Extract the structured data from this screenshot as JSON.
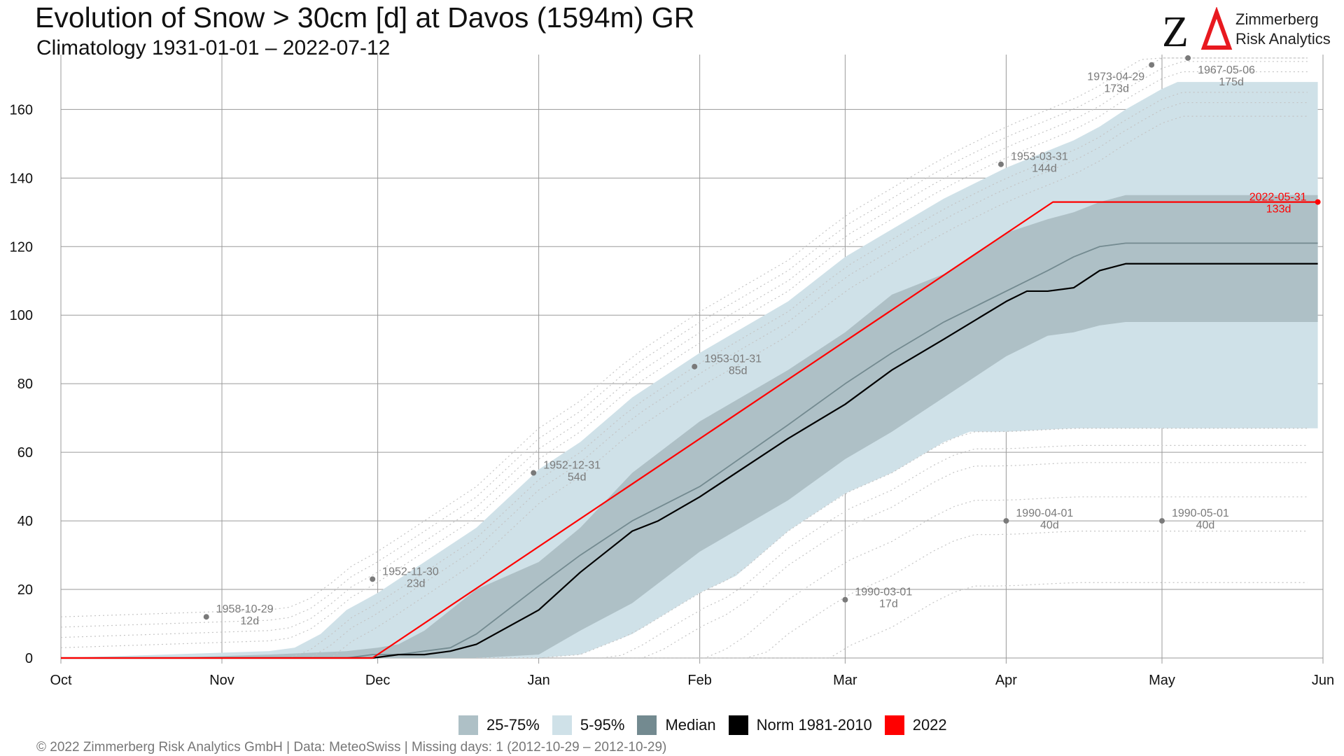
{
  "title": "Evolution of Snow > 30cm [d] at Davos (1594m) GR",
  "subtitle": "Climatology 1931-01-01 – 2022-07-12",
  "logo": {
    "mark": "ZΔ",
    "line1": "Zimmerberg",
    "line2": "Risk Analytics",
    "mark_color": "#e8191f"
  },
  "footer": "©  2022 Zimmerberg Risk Analytics GmbH | Data: MeteoSwiss | Missing days: 1 (2012-10-29 – 2012-10-29)",
  "legend": [
    {
      "label": "25-75%",
      "color": "#aec0c6"
    },
    {
      "label": "5-95%",
      "color": "#cfe1e8"
    },
    {
      "label": "Median",
      "color": "#738a90"
    },
    {
      "label": "Norm 1981-2010",
      "color": "#000000"
    },
    {
      "label": "2022",
      "color": "#ff0000"
    }
  ],
  "chart_data": {
    "type": "area",
    "title": "Evolution of Snow > 30cm [d] at Davos (1594m) GR",
    "subtitle": "Climatology 1931-01-01 – 2022-07-12",
    "xlabel": "",
    "ylabel": "",
    "x_ticks": [
      {
        "label": "Oct",
        "day": 0
      },
      {
        "label": "Nov",
        "day": 31
      },
      {
        "label": "Dec",
        "day": 61
      },
      {
        "label": "Jan",
        "day": 92
      },
      {
        "label": "Feb",
        "day": 123
      },
      {
        "label": "Mar",
        "day": 151
      },
      {
        "label": "Apr",
        "day": 182
      },
      {
        "label": "May",
        "day": 212
      },
      {
        "label": "Jun",
        "day": 243
      }
    ],
    "xlim_days": [
      0,
      243
    ],
    "ylim": [
      0,
      176
    ],
    "y_ticks": [
      0,
      20,
      40,
      60,
      80,
      100,
      120,
      140,
      160
    ],
    "grid": true,
    "legend_position": "bottom",
    "band_5_95": {
      "x": [
        0,
        20,
        40,
        45,
        50,
        55,
        61,
        70,
        80,
        92,
        100,
        110,
        123,
        140,
        151,
        170,
        182,
        195,
        200,
        205,
        212,
        215,
        220,
        242
      ],
      "lower": [
        0,
        0,
        0,
        0,
        0,
        0,
        0,
        0,
        0,
        0,
        0,
        0,
        0,
        0,
        0,
        0,
        0,
        0,
        0,
        0,
        0,
        0,
        0,
        0
      ],
      "upper": [
        0,
        1,
        2,
        3,
        7,
        14,
        19,
        28,
        38,
        55,
        63,
        76,
        89,
        104,
        117,
        134,
        143,
        151,
        155,
        160,
        166,
        168,
        168,
        168
      ]
    },
    "band_5_95_lower_track": {
      "x": [
        61,
        92,
        100,
        110,
        123,
        130,
        140,
        151,
        160,
        170,
        175,
        182,
        195,
        200,
        242
      ],
      "lower": [
        0,
        0,
        1,
        7,
        19,
        24,
        37,
        48,
        54,
        63,
        66,
        66,
        67,
        67,
        67
      ]
    },
    "band_25_75": {
      "x": [
        20,
        40,
        55,
        61,
        65,
        70,
        80,
        92,
        100,
        110,
        123,
        140,
        151,
        160,
        170,
        182,
        190,
        195,
        200,
        205,
        212,
        220,
        242
      ],
      "lower": [
        0,
        0,
        0,
        0,
        0,
        0,
        0,
        1,
        8,
        16,
        31,
        46,
        58,
        66,
        76,
        88,
        94,
        95,
        97,
        98,
        98,
        98,
        98
      ],
      "upper": [
        0,
        1,
        2,
        3,
        4,
        8,
        20,
        28,
        38,
        54,
        69,
        84,
        95,
        106,
        112,
        124,
        128,
        130,
        133,
        135,
        135,
        135,
        135
      ]
    },
    "series": [
      {
        "name": "Median",
        "color": "#738a90",
        "x": [
          0,
          40,
          55,
          60,
          65,
          70,
          75,
          80,
          92,
          100,
          110,
          123,
          140,
          151,
          160,
          170,
          182,
          190,
          195,
          200,
          205,
          212,
          220,
          242
        ],
        "values": [
          0,
          0,
          0,
          1,
          1,
          2,
          3,
          7,
          21,
          30,
          40,
          50,
          68,
          80,
          89,
          98,
          107,
          113,
          117,
          120,
          121,
          121,
          121,
          121
        ]
      },
      {
        "name": "Norm 1981-2010",
        "color": "#000000",
        "x": [
          0,
          60,
          65,
          70,
          75,
          80,
          92,
          100,
          110,
          115,
          123,
          140,
          151,
          160,
          170,
          182,
          186,
          190,
          195,
          200,
          205,
          212,
          242
        ],
        "values": [
          0,
          0,
          1,
          1,
          2,
          4,
          14,
          25,
          37,
          40,
          47,
          64,
          74,
          84,
          93,
          104,
          107,
          107,
          108,
          113,
          115,
          115,
          115
        ]
      },
      {
        "name": "2022",
        "color": "#ff0000",
        "x": [
          0,
          60,
          191,
          242
        ],
        "values": [
          0,
          0,
          133,
          133
        ]
      }
    ],
    "annotations": [
      {
        "date": "1958-10-29",
        "value": 12,
        "day": 28,
        "label": "12d"
      },
      {
        "date": "1952-11-30",
        "value": 23,
        "day": 60,
        "label": "23d"
      },
      {
        "date": "1952-12-31",
        "value": 54,
        "day": 91,
        "label": "54d"
      },
      {
        "date": "1953-01-31",
        "value": 85,
        "day": 122,
        "label": "85d"
      },
      {
        "date": "1990-03-01",
        "value": 17,
        "day": 151,
        "label": "17d"
      },
      {
        "date": "1953-03-31",
        "value": 144,
        "day": 181,
        "label": "144d"
      },
      {
        "date": "1990-04-01",
        "value": 40,
        "day": 182,
        "label": "40d"
      },
      {
        "date": "1973-04-29",
        "value": 173,
        "day": 210,
        "label": "173d"
      },
      {
        "date": "1990-05-01",
        "value": 40,
        "day": 212,
        "label": "40d"
      },
      {
        "date": "1967-05-06",
        "value": 175,
        "day": 217,
        "label": "175d"
      },
      {
        "date": "2022-05-31",
        "value": 133,
        "day": 242,
        "label": "133d",
        "highlight": true
      }
    ]
  }
}
